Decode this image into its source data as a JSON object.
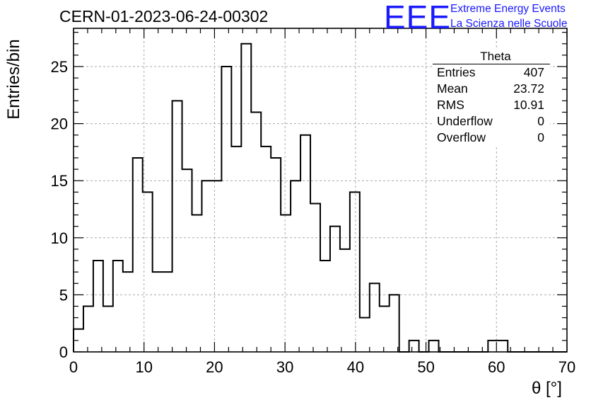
{
  "header": {
    "run_title": "CERN-01-2023-06-24-00302",
    "logo_mark": "EEE",
    "logo_line1": "Extreme Energy Events",
    "logo_line2": "La Scienza nelle Scuole",
    "logo_color": "#1a1aff"
  },
  "stats": {
    "title": "Theta",
    "rows": [
      {
        "label": "Entries",
        "value": "407"
      },
      {
        "label": "Mean",
        "value": "23.72"
      },
      {
        "label": "RMS",
        "value": "10.91"
      },
      {
        "label": "Underflow",
        "value": "0"
      },
      {
        "label": "Overflow",
        "value": "0"
      }
    ]
  },
  "chart_data": {
    "type": "bar",
    "style": "step-histogram",
    "title": "",
    "xlabel": "θ [°]",
    "ylabel": "Entries/bin",
    "xlim": [
      0,
      70
    ],
    "ylim": [
      0,
      28.35
    ],
    "bin_width": 1.4,
    "xticks": [
      0,
      10,
      20,
      30,
      40,
      50,
      60,
      70
    ],
    "yticks": [
      0,
      5,
      10,
      15,
      20,
      25
    ],
    "grid": true,
    "grid_style": "dashed",
    "line_color": "#000000",
    "values": [
      2,
      4,
      8,
      4,
      8,
      7,
      17,
      14,
      7,
      7,
      22,
      16,
      12,
      15,
      15,
      25,
      18,
      27,
      21,
      18,
      17,
      12,
      15,
      19,
      13,
      8,
      11,
      9,
      14,
      3,
      6,
      4,
      5,
      0,
      1,
      0,
      1,
      0,
      0,
      0,
      0,
      0,
      1,
      1,
      0,
      0,
      0,
      0,
      0,
      0
    ]
  }
}
